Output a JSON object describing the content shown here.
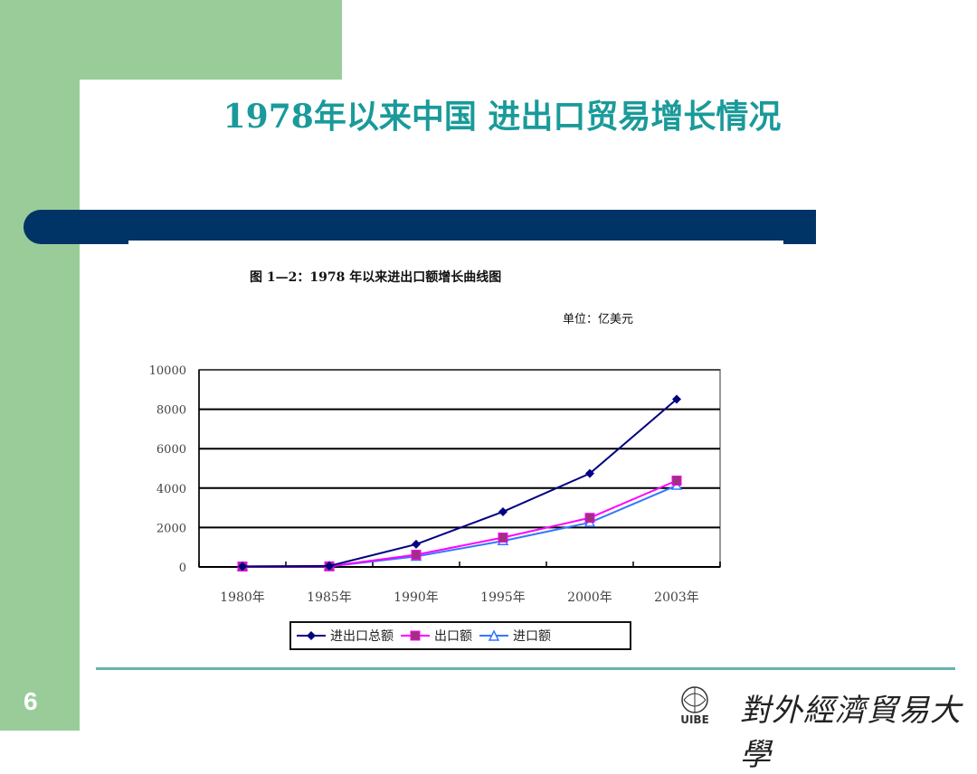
{
  "slide": {
    "title": "1978年以来中国  进出口贸易增长情况",
    "page_number": "6",
    "university": "對外經濟貿易大學",
    "logo_text": "UIBE"
  },
  "figure": {
    "caption": "图 1—2：1978 年以来进出口额增长曲线图",
    "unit": "单位：亿美元"
  },
  "chart_data": {
    "type": "line",
    "categories": [
      "1980年",
      "1985年",
      "1990年",
      "1995年",
      "2000年",
      "2003年"
    ],
    "yticks": [
      "0",
      "2000",
      "4000",
      "6000",
      "8000",
      "10000"
    ],
    "ylim": [
      0,
      10000
    ],
    "grid": true,
    "legend_position": "bottom",
    "series": [
      {
        "name": "进出口总额",
        "color": "#000080",
        "marker": "diamond",
        "values": [
          30,
          50,
          1150,
          2800,
          4740,
          8510
        ]
      },
      {
        "name": "出口额",
        "color": "#ff00ff",
        "marker": "square",
        "values": [
          20,
          30,
          620,
          1490,
          2490,
          4380
        ]
      },
      {
        "name": "进口额",
        "color": "#3377ff",
        "marker": "triangle",
        "values": [
          15,
          25,
          530,
          1320,
          2250,
          4130
        ]
      }
    ]
  }
}
